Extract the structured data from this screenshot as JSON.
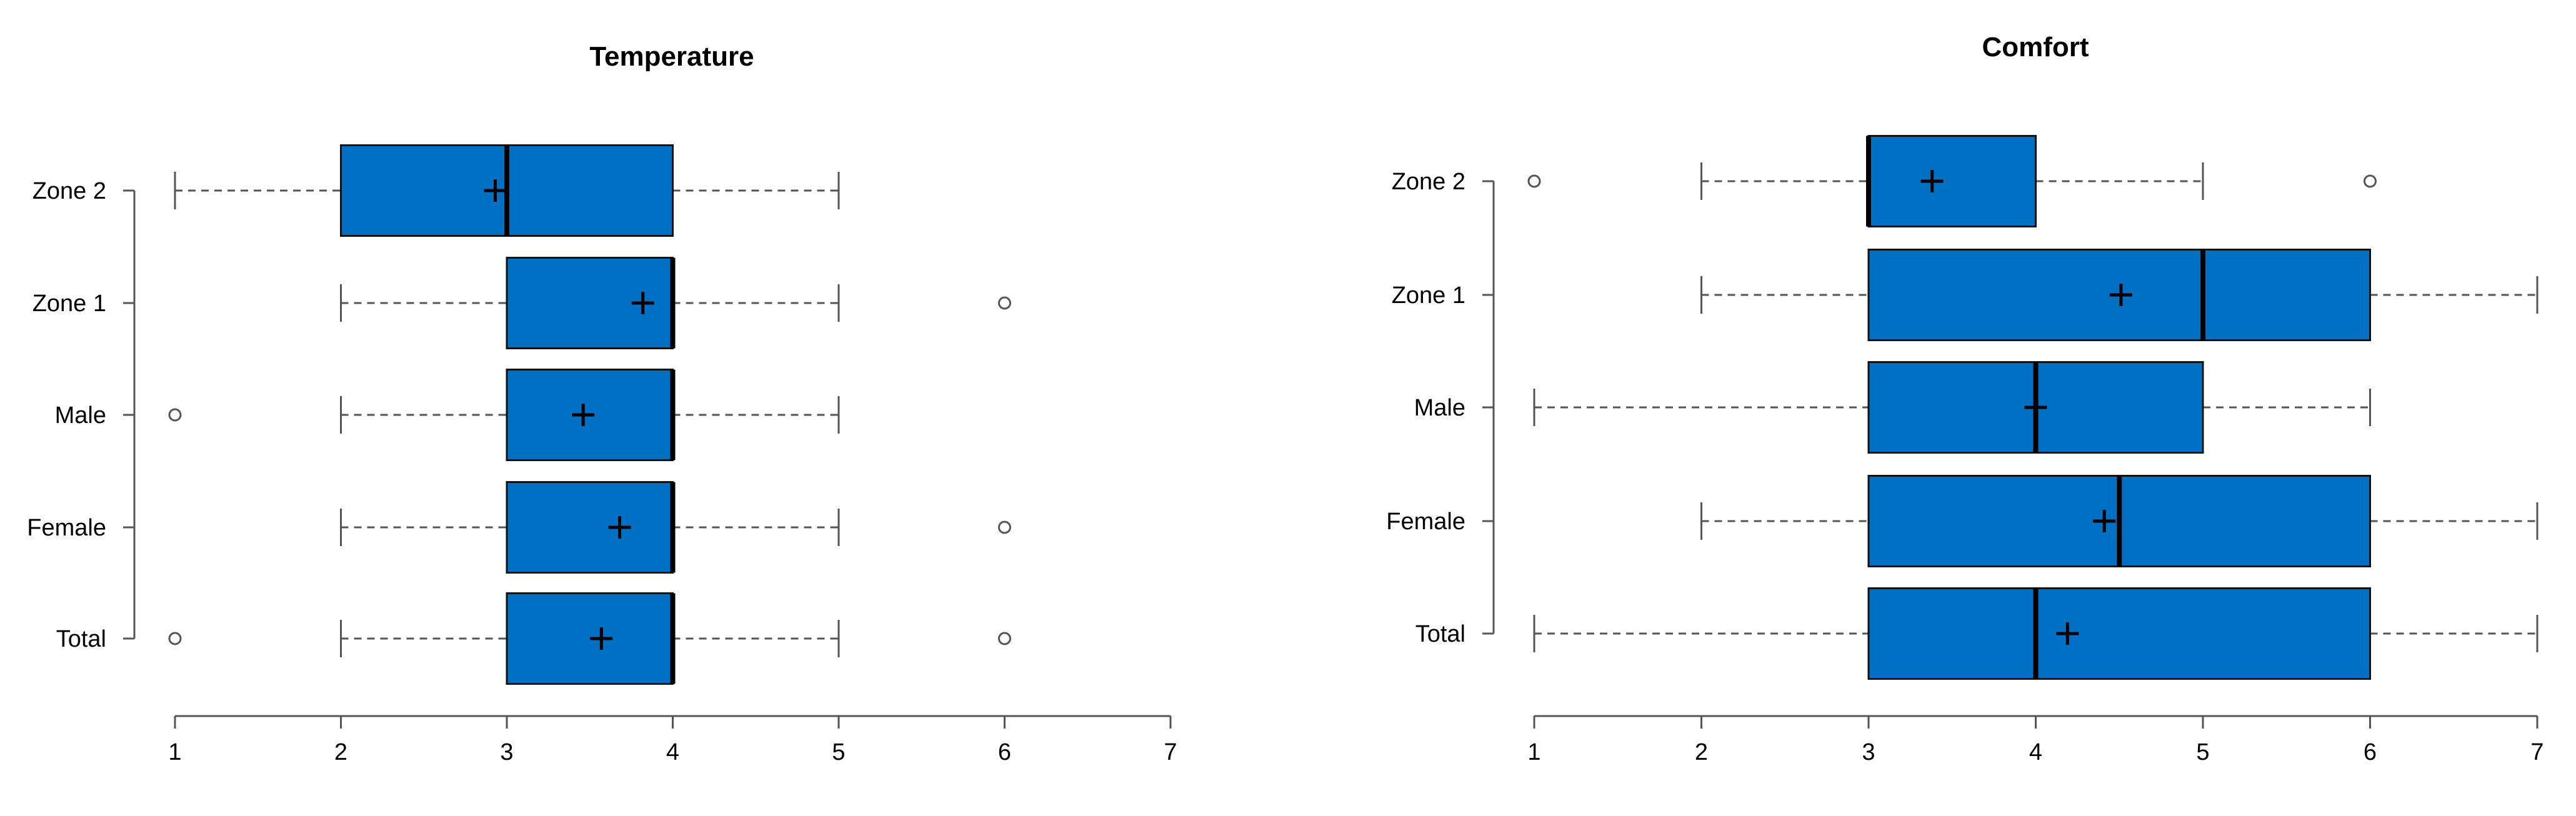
{
  "chart_data": [
    {
      "type": "boxplot",
      "orientation": "horizontal",
      "title": "Temperature",
      "xlim": [
        1,
        7
      ],
      "x_ticks": [
        1,
        2,
        3,
        4,
        5,
        6,
        7
      ],
      "categories": [
        "Zone 2",
        "Zone 1",
        "Male",
        "Female",
        "Total"
      ],
      "boxes": [
        {
          "category": "Zone 2",
          "whisker_low": 1,
          "q1": 2,
          "median": 3,
          "q3": 4,
          "whisker_high": 5,
          "mean": 2.93,
          "outliers": []
        },
        {
          "category": "Zone 1",
          "whisker_low": 2,
          "q1": 3,
          "median": 4,
          "q3": 4,
          "whisker_high": 5,
          "mean": 3.82,
          "outliers": [
            6
          ]
        },
        {
          "category": "Male",
          "whisker_low": 2,
          "q1": 3,
          "median": 4,
          "q3": 4,
          "whisker_high": 5,
          "mean": 3.46,
          "outliers": [
            1
          ]
        },
        {
          "category": "Female",
          "whisker_low": 2,
          "q1": 3,
          "median": 4,
          "q3": 4,
          "whisker_high": 5,
          "mean": 3.68,
          "outliers": [
            6
          ]
        },
        {
          "category": "Total",
          "whisker_low": 2,
          "q1": 3,
          "median": 4,
          "q3": 4,
          "whisker_high": 5,
          "mean": 3.57,
          "outliers": [
            1,
            6
          ]
        }
      ],
      "box_color": "#0070c4",
      "grid": false
    },
    {
      "type": "boxplot",
      "orientation": "horizontal",
      "title": "Comfort",
      "xlim": [
        1,
        7
      ],
      "x_ticks": [
        1,
        2,
        3,
        4,
        5,
        6,
        7
      ],
      "categories": [
        "Zone 2",
        "Zone 1",
        "Male",
        "Female",
        "Total"
      ],
      "boxes": [
        {
          "category": "Zone 2",
          "whisker_low": 2,
          "q1": 3,
          "median": 3,
          "q3": 4,
          "whisker_high": 5,
          "mean": 3.38,
          "outliers": [
            1,
            6
          ]
        },
        {
          "category": "Zone 1",
          "whisker_low": 2,
          "q1": 3,
          "median": 5,
          "q3": 6,
          "whisker_high": 7,
          "mean": 4.51,
          "outliers": []
        },
        {
          "category": "Male",
          "whisker_low": 1,
          "q1": 3,
          "median": 4,
          "q3": 5,
          "whisker_high": 6,
          "mean": 4.0,
          "outliers": []
        },
        {
          "category": "Female",
          "whisker_low": 2,
          "q1": 3,
          "median": 4.5,
          "q3": 6,
          "whisker_high": 7,
          "mean": 4.41,
          "outliers": []
        },
        {
          "category": "Total",
          "whisker_low": 1,
          "q1": 3,
          "median": 4,
          "q3": 6,
          "whisker_high": 7,
          "mean": 4.19,
          "outliers": []
        }
      ],
      "box_color": "#0070c4",
      "grid": false
    }
  ]
}
